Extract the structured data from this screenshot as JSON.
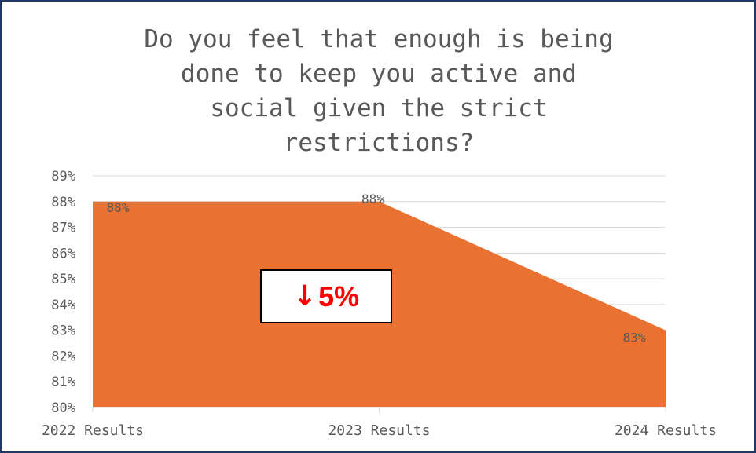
{
  "chart_data": {
    "type": "area",
    "title": "Do you feel that enough is being\ndone to keep you active and\nsocial given the strict\nrestrictions?",
    "categories": [
      "2022 Results",
      "2023 Results",
      "2024 Results"
    ],
    "values": [
      88,
      88,
      83
    ],
    "data_labels": [
      "88%",
      "88%",
      "83%"
    ],
    "ylim": [
      80,
      89
    ],
    "yticks": [
      "80%",
      "81%",
      "82%",
      "83%",
      "84%",
      "85%",
      "86%",
      "87%",
      "88%",
      "89%"
    ],
    "grid": true,
    "series_color": "#E97132",
    "gridline_color": "#d9d9d9"
  },
  "annotation": {
    "arrow": "↓",
    "text": "5%",
    "color": "#ff0000"
  }
}
